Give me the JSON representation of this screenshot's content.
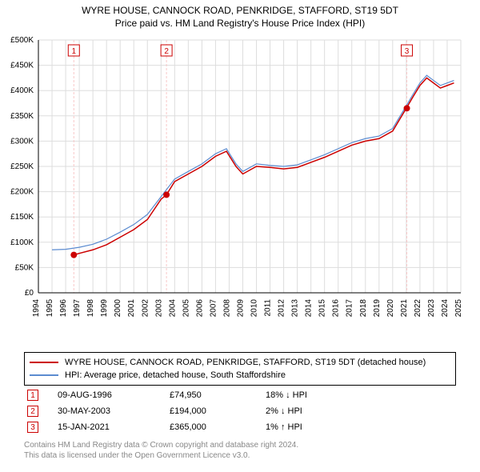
{
  "title": "WYRE HOUSE, CANNOCK ROAD, PENKRIDGE, STAFFORD, ST19 5DT",
  "subtitle": "Price paid vs. HM Land Registry's House Price Index (HPI)",
  "chart": {
    "type": "line",
    "background_color": "#ffffff",
    "grid_color": "#dddddd",
    "axis_color": "#000000",
    "axis_fontsize": 10,
    "x": {
      "min": 1994,
      "max": 2025,
      "ticks": [
        1994,
        1995,
        1996,
        1997,
        1998,
        1999,
        2000,
        2001,
        2002,
        2003,
        2004,
        2005,
        2006,
        2007,
        2008,
        2009,
        2010,
        2011,
        2012,
        2013,
        2014,
        2015,
        2016,
        2017,
        2018,
        2019,
        2020,
        2021,
        2022,
        2023,
        2024,
        2025
      ],
      "tick_label_rotation": -90
    },
    "y": {
      "min": 0,
      "max": 500000,
      "ticks": [
        0,
        50000,
        100000,
        150000,
        200000,
        250000,
        300000,
        350000,
        400000,
        450000,
        500000
      ],
      "tick_labels": [
        "£0",
        "£50K",
        "£100K",
        "£150K",
        "£200K",
        "£250K",
        "£300K",
        "£350K",
        "£400K",
        "£450K",
        "£500K"
      ]
    },
    "series": [
      {
        "name": "subject",
        "label": "WYRE HOUSE, CANNOCK ROAD, PENKRIDGE, STAFFORD, ST19 5DT (detached house)",
        "color": "#cc0000",
        "line_width": 1.5,
        "points": [
          [
            1996.6,
            74950
          ],
          [
            1997,
            78000
          ],
          [
            1998,
            85000
          ],
          [
            1999,
            95000
          ],
          [
            2000,
            110000
          ],
          [
            2001,
            125000
          ],
          [
            2002,
            145000
          ],
          [
            2003,
            185000
          ],
          [
            2003.4,
            194000
          ],
          [
            2004,
            220000
          ],
          [
            2005,
            235000
          ],
          [
            2006,
            250000
          ],
          [
            2007,
            270000
          ],
          [
            2007.8,
            280000
          ],
          [
            2008.5,
            250000
          ],
          [
            2009,
            235000
          ],
          [
            2010,
            250000
          ],
          [
            2011,
            248000
          ],
          [
            2012,
            245000
          ],
          [
            2013,
            248000
          ],
          [
            2014,
            258000
          ],
          [
            2015,
            268000
          ],
          [
            2016,
            280000
          ],
          [
            2017,
            292000
          ],
          [
            2018,
            300000
          ],
          [
            2019,
            305000
          ],
          [
            2020,
            320000
          ],
          [
            2021,
            365000
          ],
          [
            2021.5,
            388000
          ],
          [
            2022,
            410000
          ],
          [
            2022.5,
            425000
          ],
          [
            2023,
            415000
          ],
          [
            2023.5,
            405000
          ],
          [
            2024,
            410000
          ],
          [
            2024.5,
            415000
          ]
        ]
      },
      {
        "name": "hpi",
        "label": "HPI: Average price, detached house, South Staffordshire",
        "color": "#5b8bd0",
        "line_width": 1.2,
        "points": [
          [
            1995,
            85000
          ],
          [
            1996,
            86000
          ],
          [
            1997,
            90000
          ],
          [
            1998,
            96000
          ],
          [
            1999,
            106000
          ],
          [
            2000,
            120000
          ],
          [
            2001,
            135000
          ],
          [
            2002,
            155000
          ],
          [
            2003,
            190000
          ],
          [
            2004,
            225000
          ],
          [
            2005,
            240000
          ],
          [
            2006,
            255000
          ],
          [
            2007,
            275000
          ],
          [
            2007.8,
            285000
          ],
          [
            2008.5,
            255000
          ],
          [
            2009,
            240000
          ],
          [
            2010,
            255000
          ],
          [
            2011,
            252000
          ],
          [
            2012,
            250000
          ],
          [
            2013,
            253000
          ],
          [
            2014,
            263000
          ],
          [
            2015,
            273000
          ],
          [
            2016,
            285000
          ],
          [
            2017,
            297000
          ],
          [
            2018,
            305000
          ],
          [
            2019,
            310000
          ],
          [
            2020,
            325000
          ],
          [
            2021,
            370000
          ],
          [
            2021.5,
            393000
          ],
          [
            2022,
            415000
          ],
          [
            2022.5,
            430000
          ],
          [
            2023,
            420000
          ],
          [
            2023.5,
            410000
          ],
          [
            2024,
            415000
          ],
          [
            2024.5,
            420000
          ]
        ]
      }
    ],
    "markers": [
      {
        "n": "1",
        "date_label": "09-AUG-1996",
        "x": 1996.6,
        "y": 74950,
        "price": "£74,950",
        "hpi": "18% ↓ HPI",
        "vline_color": "#f8c8c8"
      },
      {
        "n": "2",
        "date_label": "30-MAY-2003",
        "x": 2003.4,
        "y": 194000,
        "price": "£194,000",
        "hpi": "2% ↓ HPI",
        "vline_color": "#f8c8c8"
      },
      {
        "n": "3",
        "date_label": "15-JAN-2021",
        "x": 2021.04,
        "y": 365000,
        "price": "£365,000",
        "hpi": "1% ↑ HPI",
        "vline_color": "#f8c8c8"
      }
    ],
    "marker_badge": {
      "border_color": "#cc0000",
      "text_color": "#cc0000",
      "fill": "#ffffff",
      "size": 14,
      "fontsize": 10
    },
    "marker_dot": {
      "color": "#cc0000",
      "radius": 4
    }
  },
  "footer": {
    "line1": "Contains HM Land Registry data © Crown copyright and database right 2024.",
    "line2": "This data is licensed under the Open Government Licence v3.0."
  }
}
